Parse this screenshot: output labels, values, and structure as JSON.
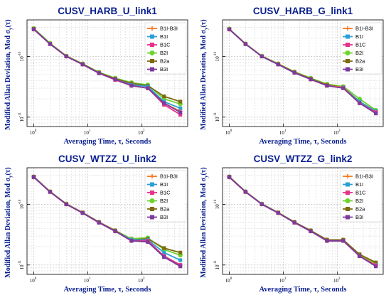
{
  "figure": {
    "y_label": "Modified Allan Deviation, Mod σ",
    "x_label": "Averaging Time, τ, Seconds",
    "x_tick_labels": [
      "10",
      "10",
      "10"
    ],
    "x_tick_exponents": [
      "0",
      "1",
      "2"
    ],
    "y_tick_labels": [
      "10",
      "10"
    ],
    "y_tick_exponents": [
      "-10",
      "-11"
    ]
  },
  "legend": [
    "B1I-B3I",
    "B1I",
    "B1C",
    "B2I",
    "B2a",
    "B3I"
  ],
  "colors": {
    "B1I-B3I": "#f47920",
    "B1I": "#2c9fd6",
    "B1C": "#e8308a",
    "B2I": "#6ed42e",
    "B2a": "#7d6a10",
    "B3I": "#7c3a9c",
    "title": "#0a1f8f"
  },
  "chart_data": [
    {
      "type": "line",
      "title": "CUSV_HARB_U_link1",
      "xlabel": "Averaging Time, τ, Seconds",
      "ylabel": "Modified Allan Deviation, Mod σy(τ)",
      "x_scale": "log",
      "y_scale": "log",
      "xlim": [
        0.75,
        700
      ],
      "ylim": [
        7e-12,
        4e-10
      ],
      "grid": true,
      "legend_position": "top-right",
      "x": [
        1,
        2,
        4,
        8,
        16,
        32,
        64,
        128,
        256,
        512
      ],
      "series": [
        {
          "name": "B1I-B3I",
          "values": [
            2.8e-10,
            1.6e-10,
            1e-10,
            7.4e-11,
            5.3e-11,
            4.2e-11,
            3.3e-11,
            3e-11,
            1.7e-11,
            1.25e-11
          ]
        },
        {
          "name": "B1I",
          "values": [
            2.8e-10,
            1.6e-10,
            1e-10,
            7.4e-11,
            5.3e-11,
            4.2e-11,
            3.4e-11,
            3.2e-11,
            1.8e-11,
            1.4e-11
          ]
        },
        {
          "name": "B1C",
          "values": [
            2.8e-10,
            1.6e-10,
            1e-10,
            7.4e-11,
            5.3e-11,
            4.1e-11,
            3.3e-11,
            3e-11,
            1.6e-11,
            1.1e-11
          ]
        },
        {
          "name": "B2I",
          "values": [
            2.9e-10,
            1.65e-10,
            1.02e-10,
            7.6e-11,
            5.5e-11,
            4.4e-11,
            3.7e-11,
            3.4e-11,
            2e-11,
            1.65e-11
          ]
        },
        {
          "name": "B2a",
          "values": [
            2.85e-10,
            1.62e-10,
            1.01e-10,
            7.5e-11,
            5.4e-11,
            4.3e-11,
            3.6e-11,
            3.3e-11,
            2.2e-11,
            1.8e-11
          ]
        },
        {
          "name": "B3I",
          "values": [
            2.8e-10,
            1.6e-10,
            1e-10,
            7.4e-11,
            5.3e-11,
            4.2e-11,
            3.3e-11,
            3e-11,
            1.7e-11,
            1.2e-11
          ]
        }
      ]
    },
    {
      "type": "line",
      "title": "CUSV_HARB_G_link1",
      "xlabel": "Averaging Time, τ, Seconds",
      "ylabel": "Modified Allan Deviation, Mod σy(τ)",
      "x_scale": "log",
      "y_scale": "log",
      "xlim": [
        0.75,
        700
      ],
      "ylim": [
        7e-12,
        4e-10
      ],
      "grid": true,
      "legend_position": "top-right",
      "x": [
        1,
        2,
        4,
        8,
        16,
        32,
        64,
        128,
        256,
        512
      ],
      "series": [
        {
          "name": "B1I-B3I",
          "values": [
            2.8e-10,
            1.6e-10,
            1e-10,
            7.4e-11,
            5.4e-11,
            4.2e-11,
            3.3e-11,
            3.1e-11,
            1.7e-11,
            1.2e-11
          ]
        },
        {
          "name": "B1I",
          "values": [
            2.8e-10,
            1.6e-10,
            1e-10,
            7.4e-11,
            5.4e-11,
            4.2e-11,
            3.3e-11,
            3.1e-11,
            1.8e-11,
            1.25e-11
          ]
        },
        {
          "name": "B1C",
          "values": [
            2.8e-10,
            1.6e-10,
            1e-10,
            7.4e-11,
            5.4e-11,
            4.2e-11,
            3.3e-11,
            3e-11,
            1.7e-11,
            1.2e-11
          ]
        },
        {
          "name": "B2I",
          "values": [
            2.85e-10,
            1.62e-10,
            1.02e-10,
            7.6e-11,
            5.6e-11,
            4.4e-11,
            3.5e-11,
            3.2e-11,
            2e-11,
            1.3e-11
          ]
        },
        {
          "name": "B2a",
          "values": [
            2.8e-10,
            1.6e-10,
            1e-10,
            7.5e-11,
            5.5e-11,
            4.3e-11,
            3.4e-11,
            3.1e-11,
            1.8e-11,
            1.25e-11
          ]
        },
        {
          "name": "B3I",
          "values": [
            2.8e-10,
            1.6e-10,
            1e-10,
            7.4e-11,
            5.4e-11,
            4.2e-11,
            3.3e-11,
            3e-11,
            1.7e-11,
            1.15e-11
          ]
        }
      ]
    },
    {
      "type": "line",
      "title": "CUSV_WTZZ_U_link2",
      "xlabel": "Averaging Time, τ, Seconds",
      "ylabel": "Modified Allan Deviation, Mod σy(τ)",
      "x_scale": "log",
      "y_scale": "log",
      "xlim": [
        0.75,
        700
      ],
      "ylim": [
        7e-12,
        4e-10
      ],
      "grid": true,
      "legend_position": "top-right",
      "x": [
        1,
        2,
        4,
        8,
        16,
        32,
        64,
        128,
        256,
        512
      ],
      "series": [
        {
          "name": "B1I-B3I",
          "values": [
            2.8e-10,
            1.6e-10,
            1e-10,
            7.2e-11,
            5e-11,
            3.6e-11,
            2.5e-11,
            2.5e-11,
            1.4e-11,
            1e-11
          ]
        },
        {
          "name": "B1I",
          "values": [
            2.8e-10,
            1.6e-10,
            1e-10,
            7.2e-11,
            5e-11,
            3.6e-11,
            2.6e-11,
            2.6e-11,
            1.6e-11,
            1.2e-11
          ]
        },
        {
          "name": "B1C",
          "values": [
            2.8e-10,
            1.6e-10,
            1e-10,
            7.2e-11,
            5e-11,
            3.6e-11,
            2.5e-11,
            2.5e-11,
            1.4e-11,
            1e-11
          ]
        },
        {
          "name": "B2I",
          "values": [
            2.85e-10,
            1.62e-10,
            1.02e-10,
            7.3e-11,
            5.1e-11,
            3.7e-11,
            2.7e-11,
            2.8e-11,
            1.8e-11,
            1.45e-11
          ]
        },
        {
          "name": "B2a",
          "values": [
            2.85e-10,
            1.62e-10,
            1.01e-10,
            7.3e-11,
            5.1e-11,
            3.7e-11,
            2.6e-11,
            2.7e-11,
            1.9e-11,
            1.6e-11
          ]
        },
        {
          "name": "B3I",
          "values": [
            2.8e-10,
            1.6e-10,
            1e-10,
            7.2e-11,
            5e-11,
            3.6e-11,
            2.5e-11,
            2.4e-11,
            1.35e-11,
            9.5e-12
          ]
        }
      ]
    },
    {
      "type": "line",
      "title": "CUSV_WTZZ_G_link2",
      "xlabel": "Averaging Time, τ, Seconds",
      "ylabel": "Modified Allan Deviation, Mod σy(τ)",
      "x_scale": "log",
      "y_scale": "log",
      "xlim": [
        0.75,
        700
      ],
      "ylim": [
        7e-12,
        4e-10
      ],
      "grid": true,
      "legend_position": "top-right",
      "x": [
        1,
        2,
        4,
        8,
        16,
        32,
        64,
        128,
        256,
        512
      ],
      "series": [
        {
          "name": "B1I-B3I",
          "values": [
            2.8e-10,
            1.6e-10,
            1e-10,
            7.2e-11,
            5e-11,
            3.6e-11,
            2.5e-11,
            2.5e-11,
            1.4e-11,
            1e-11
          ]
        },
        {
          "name": "B1I",
          "values": [
            2.8e-10,
            1.6e-10,
            1e-10,
            7.2e-11,
            5e-11,
            3.6e-11,
            2.5e-11,
            2.5e-11,
            1.4e-11,
            1e-11
          ]
        },
        {
          "name": "B1C",
          "values": [
            2.8e-10,
            1.6e-10,
            1e-10,
            7.2e-11,
            5e-11,
            3.6e-11,
            2.5e-11,
            2.5e-11,
            1.4e-11,
            9.8e-12
          ]
        },
        {
          "name": "B2I",
          "values": [
            2.85e-10,
            1.62e-10,
            1.02e-10,
            7.3e-11,
            5.1e-11,
            3.7e-11,
            2.6e-11,
            2.6e-11,
            1.45e-11,
            1.05e-11
          ]
        },
        {
          "name": "B2a",
          "values": [
            2.85e-10,
            1.62e-10,
            1.01e-10,
            7.3e-11,
            5.1e-11,
            3.7e-11,
            2.6e-11,
            2.6e-11,
            1.5e-11,
            1.1e-11
          ]
        },
        {
          "name": "B3I",
          "values": [
            2.8e-10,
            1.6e-10,
            1e-10,
            7.2e-11,
            5e-11,
            3.6e-11,
            2.5e-11,
            2.5e-11,
            1.4e-11,
            9.5e-12
          ]
        }
      ]
    }
  ]
}
